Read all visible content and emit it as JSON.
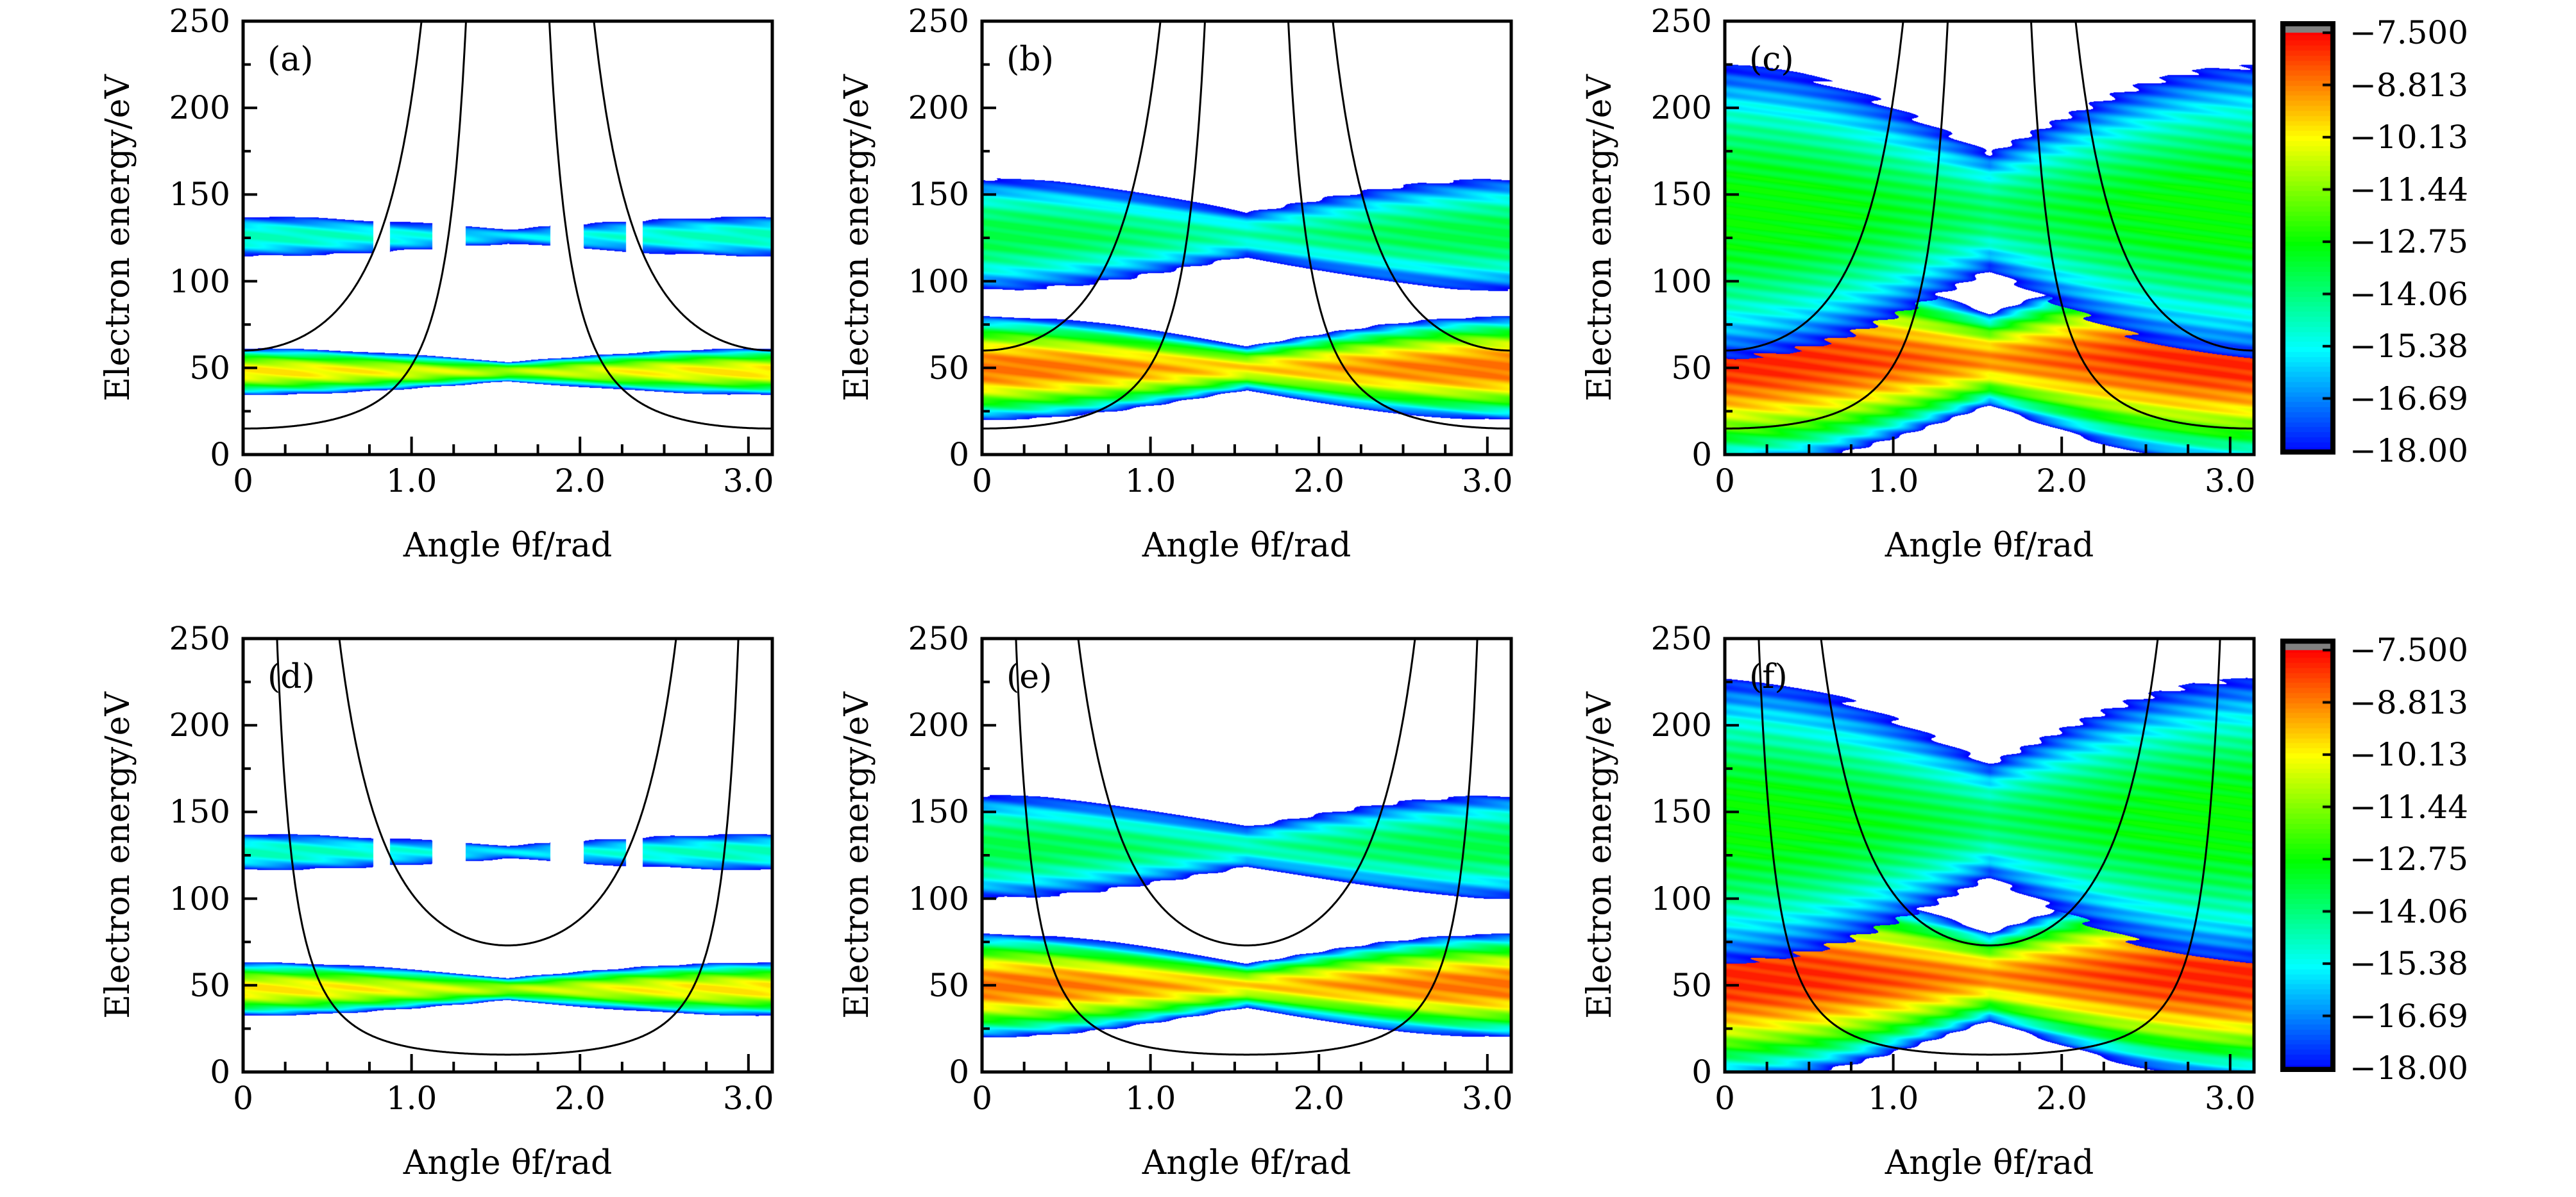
{
  "chart_data": [
    {
      "type": "heatmap",
      "panel_label": "(a)",
      "xlabel": "Angle θf/rad",
      "ylabel": "Electron energy/eV",
      "xlim": [
        0,
        3.1416
      ],
      "ylim": [
        0,
        250
      ],
      "xticks": [
        "0",
        "1.0",
        "2.0",
        "3.0"
      ],
      "yticks": [
        "0",
        "50",
        "100",
        "150",
        "200",
        "250"
      ],
      "bands": [
        {
          "energy_range": [
            35,
            62
          ],
          "center": 48,
          "peak": -9.8,
          "central_gap": false
        },
        {
          "energy_range": [
            115,
            138
          ],
          "center": 126,
          "peak": -14.6,
          "central_gap": true
        }
      ],
      "curves": [
        {
          "form": "E0/cos^2(theta)",
          "E0": 15
        },
        {
          "form": "E0/cos^2(theta)",
          "E0": 60
        }
      ]
    },
    {
      "type": "heatmap",
      "panel_label": "(b)",
      "xlabel": "Angle θf/rad",
      "ylabel": "Electron energy/eV",
      "xlim": [
        0,
        3.1416
      ],
      "ylim": [
        0,
        250
      ],
      "xticks": [
        "0",
        "1.0",
        "2.0",
        "3.0"
      ],
      "yticks": [
        "0",
        "50",
        "100",
        "150",
        "200",
        "250"
      ],
      "bands": [
        {
          "energy_range": [
            22,
            82
          ],
          "center": 50,
          "peak": -8.6,
          "central_gap": false
        },
        {
          "energy_range": [
            95,
            160
          ],
          "center": 127,
          "peak": -13.4,
          "central_gap": false
        }
      ],
      "curves": [
        {
          "form": "E0/cos^2(theta)",
          "E0": 15
        },
        {
          "form": "E0/cos^2(theta)",
          "E0": 60
        }
      ]
    },
    {
      "type": "heatmap",
      "panel_label": "(c)",
      "xlabel": "Angle θf/rad",
      "ylabel": "Electron energy/eV",
      "xlim": [
        0,
        3.1416
      ],
      "ylim": [
        0,
        250
      ],
      "xticks": [
        "0",
        "1.0",
        "2.0",
        "3.0"
      ],
      "yticks": [
        "0",
        "50",
        "100",
        "150",
        "200",
        "250"
      ],
      "bands": [
        {
          "energy_range": [
            0,
            125
          ],
          "center": 55,
          "peak": -7.8,
          "central_gap": false
        },
        {
          "energy_range": [
            60,
            230
          ],
          "center": 140,
          "peak": -12.6,
          "central_gap": false
        }
      ],
      "curves": [
        {
          "form": "E0/cos^2(theta)",
          "E0": 15
        },
        {
          "form": "E0/cos^2(theta)",
          "E0": 60
        }
      ]
    },
    {
      "type": "heatmap",
      "panel_label": "(d)",
      "xlabel": "Angle θf/rad",
      "ylabel": "Electron energy/eV",
      "xlim": [
        0,
        3.1416
      ],
      "ylim": [
        0,
        250
      ],
      "xticks": [
        "0",
        "1.0",
        "2.0",
        "3.0"
      ],
      "yticks": [
        "0",
        "50",
        "100",
        "150",
        "200",
        "250"
      ],
      "bands": [
        {
          "energy_range": [
            33,
            64
          ],
          "center": 48,
          "peak": -9.8,
          "central_gap": false
        },
        {
          "energy_range": [
            117,
            138
          ],
          "center": 127,
          "peak": -14.6,
          "central_gap": true
        }
      ],
      "curves": [
        {
          "form": "E0/sin^2(theta)",
          "E0": 10
        },
        {
          "form": "E0/sin^2(theta)",
          "E0": 73
        }
      ]
    },
    {
      "type": "heatmap",
      "panel_label": "(e)",
      "xlabel": "Angle θf/rad",
      "ylabel": "Electron energy/eV",
      "xlim": [
        0,
        3.1416
      ],
      "ylim": [
        0,
        250
      ],
      "xticks": [
        "0",
        "1.0",
        "2.0",
        "3.0"
      ],
      "yticks": [
        "0",
        "50",
        "100",
        "150",
        "200",
        "250"
      ],
      "bands": [
        {
          "energy_range": [
            22,
            82
          ],
          "center": 50,
          "peak": -8.6,
          "central_gap": false
        },
        {
          "energy_range": [
            100,
            160
          ],
          "center": 130,
          "peak": -13.4,
          "central_gap": false
        }
      ],
      "curves": [
        {
          "form": "E0/sin^2(theta)",
          "E0": 10
        },
        {
          "form": "E0/sin^2(theta)",
          "E0": 73
        }
      ]
    },
    {
      "type": "heatmap",
      "panel_label": "(f)",
      "xlabel": "Angle θf/rad",
      "ylabel": "Electron energy/eV",
      "xlim": [
        0,
        3.1416
      ],
      "ylim": [
        0,
        250
      ],
      "xticks": [
        "0",
        "1.0",
        "2.0",
        "3.0"
      ],
      "yticks": [
        "0",
        "50",
        "100",
        "150",
        "200",
        "250"
      ],
      "bands": [
        {
          "energy_range": [
            0,
            120
          ],
          "center": 55,
          "peak": -7.8,
          "central_gap": false
        },
        {
          "energy_range": [
            70,
            235
          ],
          "center": 145,
          "peak": -12.6,
          "central_gap": false
        }
      ],
      "curves": [
        {
          "form": "E0/sin^2(theta)",
          "E0": 10
        },
        {
          "form": "E0/sin^2(theta)",
          "E0": 73
        }
      ]
    }
  ],
  "colorbar": {
    "range": [
      -18,
      -7.5
    ],
    "labels": [
      "−7.500",
      "−8.813",
      "−10.13",
      "−11.44",
      "−12.75",
      "−14.06",
      "−15.38",
      "−16.69",
      "−18.00"
    ],
    "colormap": [
      "#0000ff",
      "#00ffff",
      "#00ff00",
      "#ffff00",
      "#ff0000"
    ],
    "overflow_color": "#808080"
  }
}
